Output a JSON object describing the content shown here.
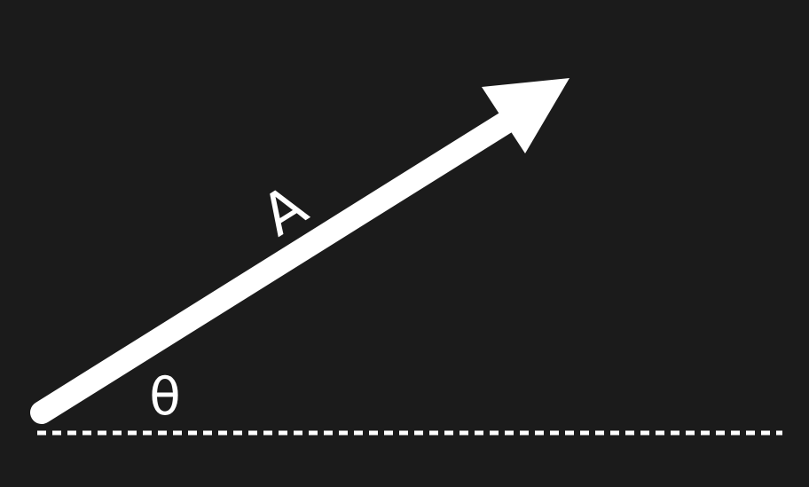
{
  "diagram": {
    "vector_label": "A",
    "angle_label": "θ",
    "colors": {
      "background": "#1b1b1b",
      "foreground": "#ffffff"
    }
  }
}
